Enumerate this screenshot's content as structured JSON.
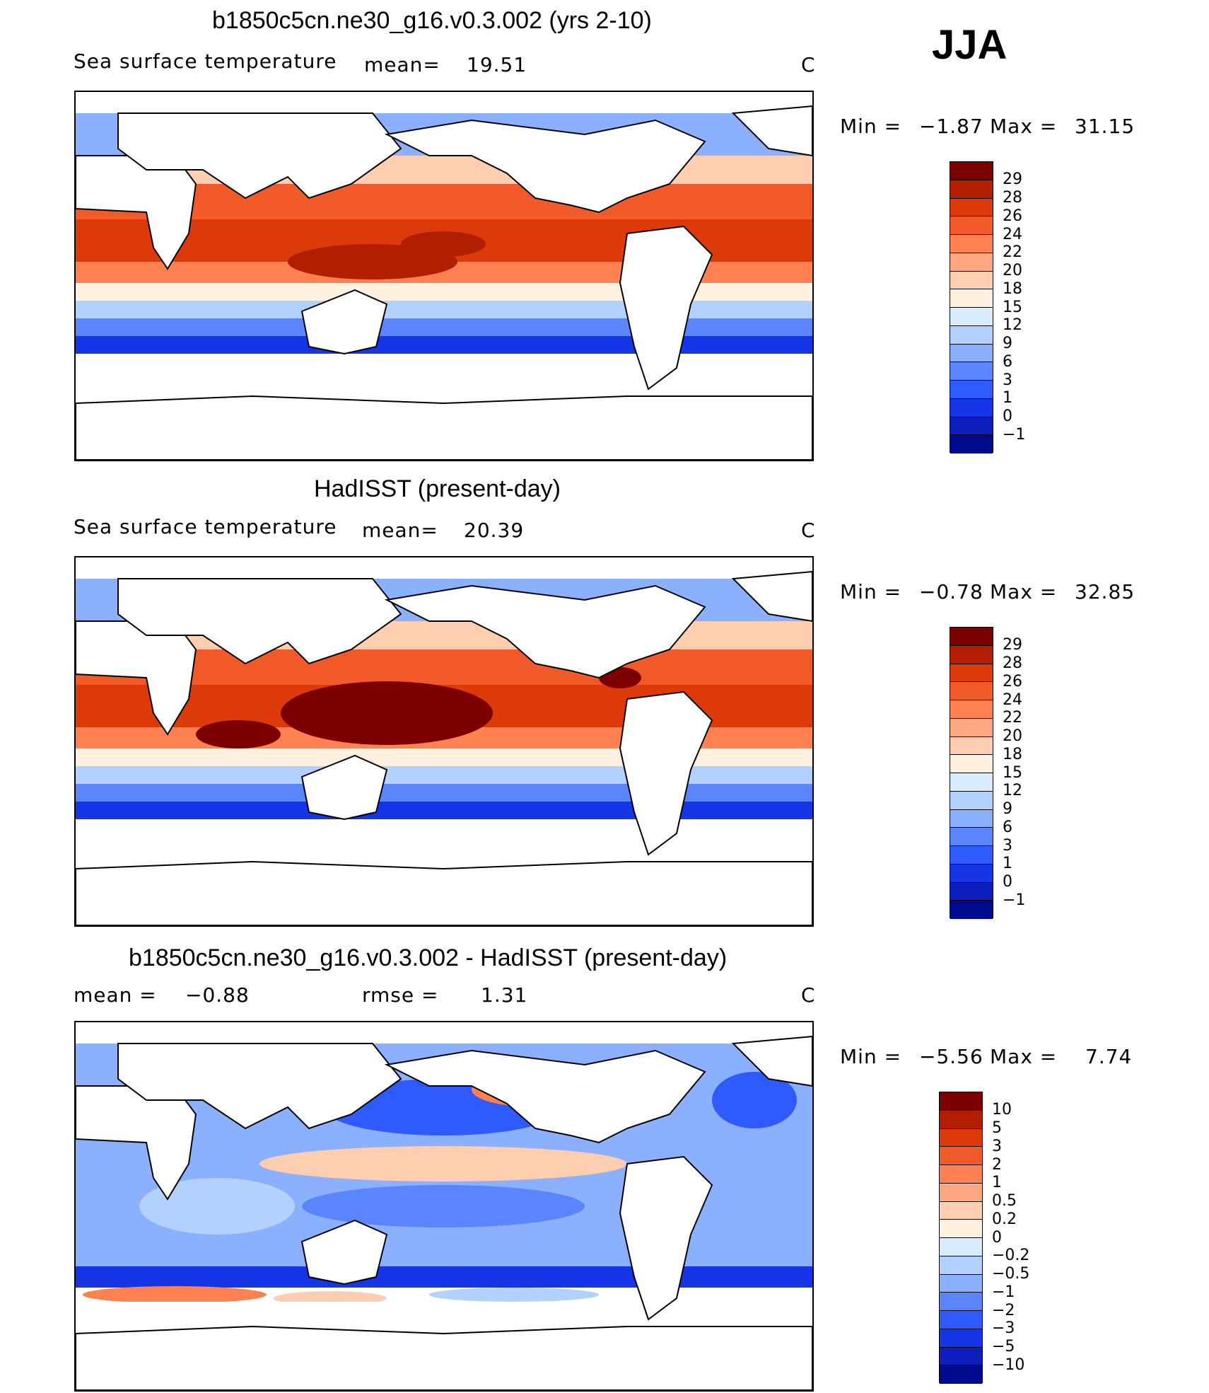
{
  "season": "JJA",
  "panels": [
    {
      "title": "b1850c5cn.ne30_g16.v0.3.002 (yrs 2-10)",
      "left_label": "Sea surface temperature",
      "stat_label": "mean=",
      "stat_value": "19.51",
      "units": "C",
      "min_label": "Min =",
      "min_value": "−1.87",
      "max_label": "Max =",
      "max_value": "31.15",
      "colorbar": {
        "colors": [
          "#7d0000",
          "#b21e00",
          "#dc3a0a",
          "#f25a2a",
          "#ff8050",
          "#ffa782",
          "#ffcdb0",
          "#fff0e0",
          "#d9ebff",
          "#b3d1ff",
          "#8ab0ff",
          "#5a85ff",
          "#2f5aff",
          "#1535e6",
          "#0d1ebd",
          "#000a8c"
        ],
        "labels": [
          "29",
          "28",
          "26",
          "24",
          "22",
          "20",
          "18",
          "15",
          "12",
          "9",
          "6",
          "3",
          "1",
          "0",
          "−1"
        ]
      }
    },
    {
      "title": "HadISST (present-day)",
      "left_label": "Sea surface temperature",
      "stat_label": "mean=",
      "stat_value": "20.39",
      "units": "C",
      "min_label": "Min =",
      "min_value": "−0.78",
      "max_label": "Max =",
      "max_value": "32.85",
      "colorbar": {
        "colors": [
          "#7d0000",
          "#b21e00",
          "#dc3a0a",
          "#f25a2a",
          "#ff8050",
          "#ffa782",
          "#ffcdb0",
          "#fff0e0",
          "#d9ebff",
          "#b3d1ff",
          "#8ab0ff",
          "#5a85ff",
          "#2f5aff",
          "#1535e6",
          "#0d1ebd",
          "#000a8c"
        ],
        "labels": [
          "29",
          "28",
          "26",
          "24",
          "22",
          "20",
          "18",
          "15",
          "12",
          "9",
          "6",
          "3",
          "1",
          "0",
          "−1"
        ]
      }
    },
    {
      "title": "b1850c5cn.ne30_g16.v0.3.002 - HadISST (present-day)",
      "left_label": "mean =",
      "left_value": "−0.88",
      "stat_label": "rmse =",
      "stat_value": "1.31",
      "units": "C",
      "min_label": "Min =",
      "min_value": "−5.56",
      "max_label": "Max =",
      "max_value": "7.74",
      "colorbar": {
        "colors": [
          "#7d0000",
          "#b21e00",
          "#dc3a0a",
          "#f25a2a",
          "#ff8050",
          "#ffa782",
          "#ffcdb0",
          "#fff0e0",
          "#d9ebff",
          "#b3d1ff",
          "#8ab0ff",
          "#5a85ff",
          "#2f5aff",
          "#1535e6",
          "#0d1ebd",
          "#000a8c"
        ],
        "labels": [
          "10",
          "5",
          "3",
          "2",
          "1",
          "0.5",
          "0.2",
          "0",
          "−0.2",
          "−0.5",
          "−1",
          "−2",
          "−3",
          "−5",
          "−10"
        ]
      }
    }
  ]
}
